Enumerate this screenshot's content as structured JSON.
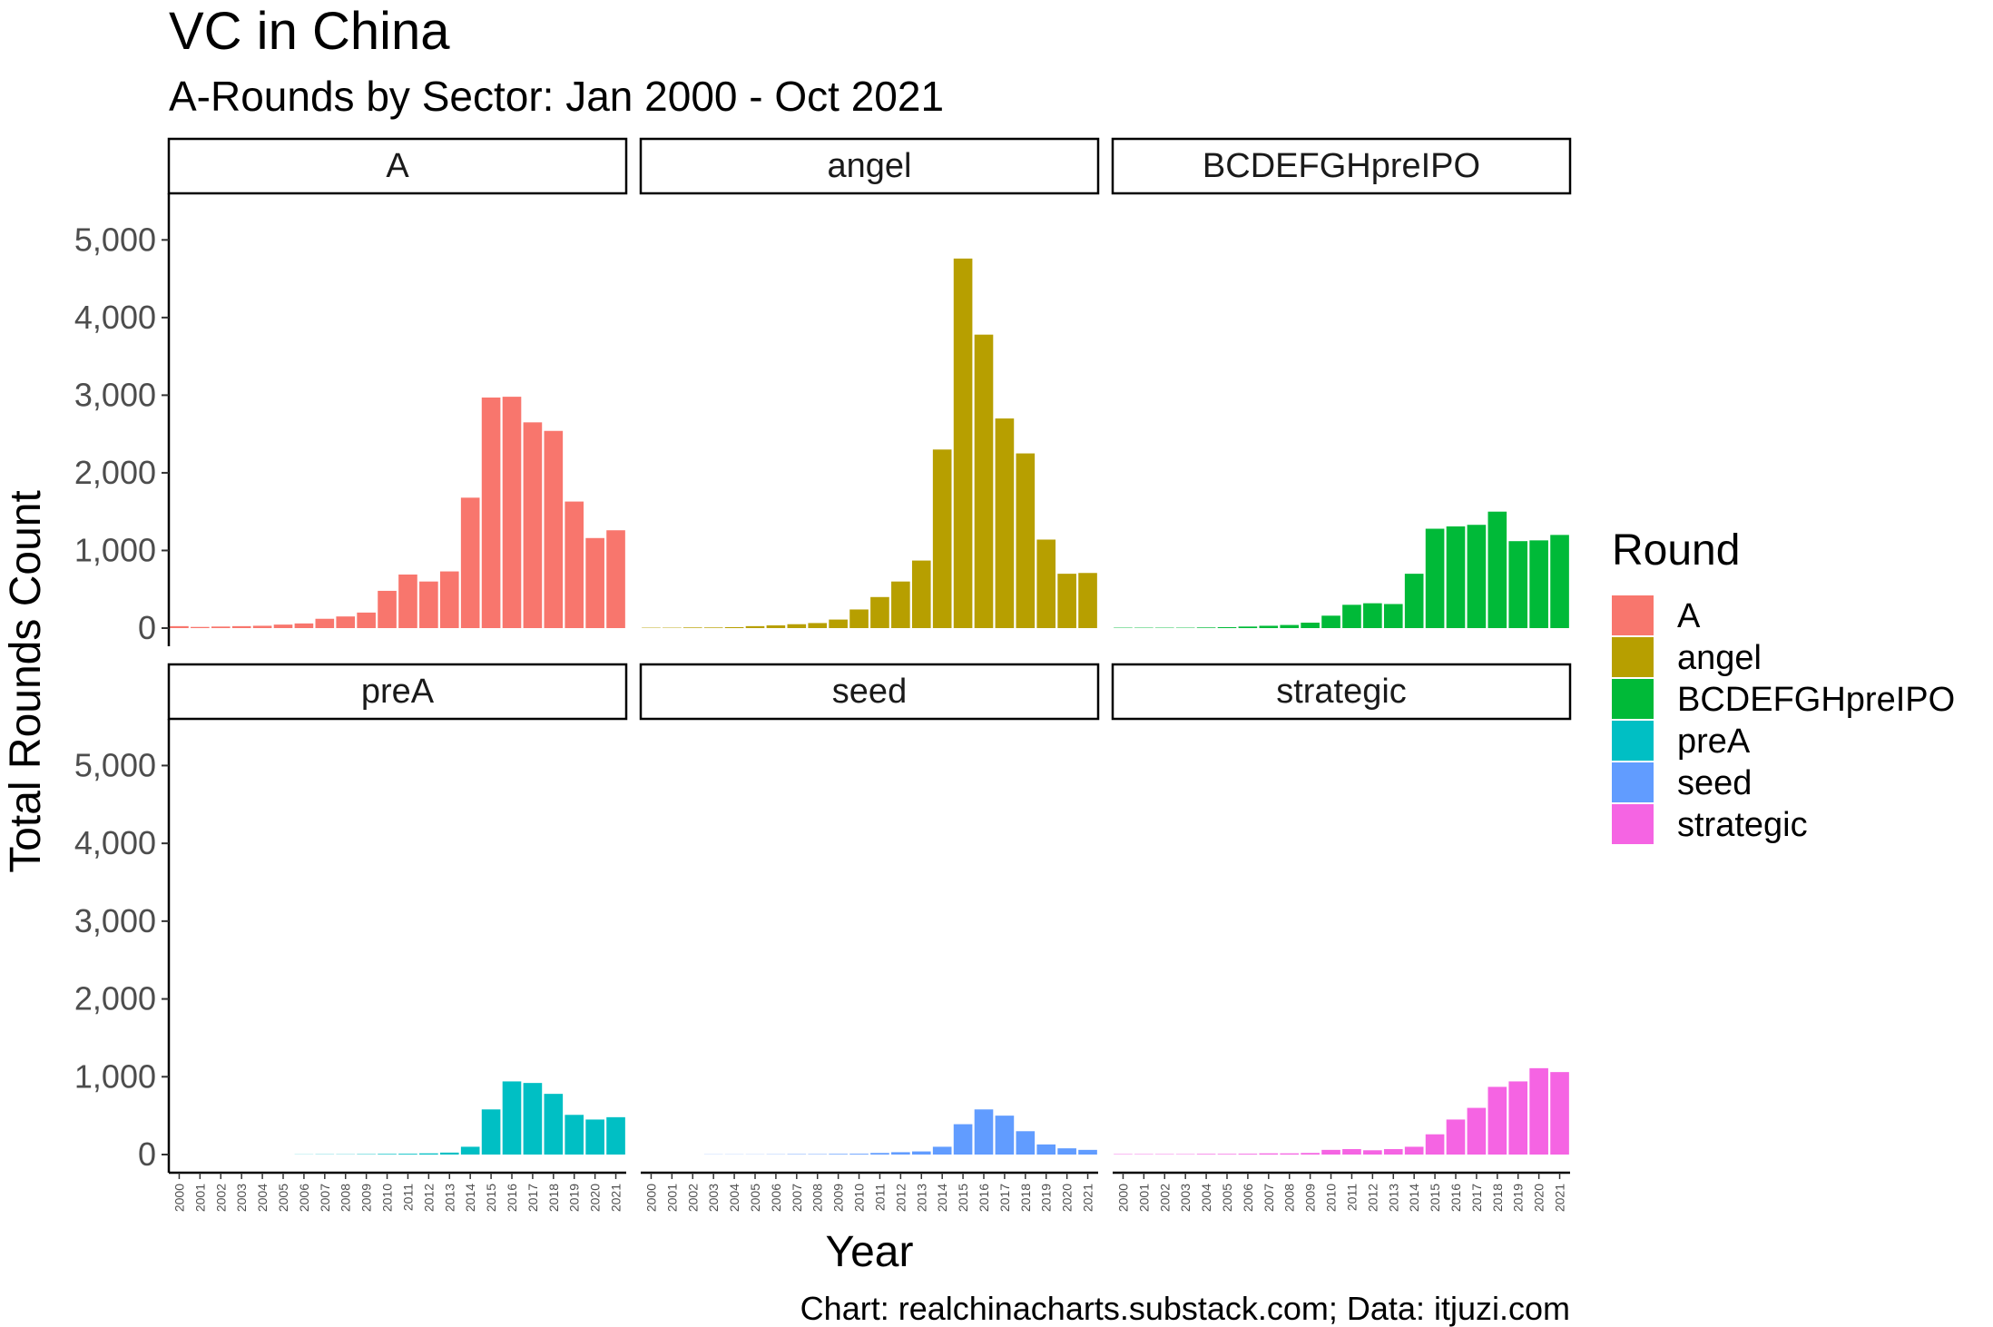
{
  "title": "VC in China",
  "subtitle": "A-Rounds by Sector: Jan 2000 - Oct 2021",
  "caption": "Chart: realchinacharts.substack.com; Data: itjuzi.com",
  "legend_title": "Round",
  "chart_data": {
    "type": "bar",
    "layout": "facet-grid-2x3",
    "xlabel": "Year",
    "ylabel": "Total Rounds Count",
    "ylim": [
      0,
      5600
    ],
    "yticks": [
      0,
      1000,
      2000,
      3000,
      4000,
      5000
    ],
    "ytick_labels": [
      "0",
      "1,000",
      "2,000",
      "3,000",
      "4,000",
      "5,000"
    ],
    "grid": false,
    "legend_position": "right",
    "categories": [
      "2000",
      "2001",
      "2002",
      "2003",
      "2004",
      "2005",
      "2006",
      "2007",
      "2008",
      "2009",
      "2010",
      "2011",
      "2012",
      "2013",
      "2014",
      "2015",
      "2016",
      "2017",
      "2018",
      "2019",
      "2020",
      "2021"
    ],
    "series": [
      {
        "name": "A",
        "color": "#F8766D",
        "values": [
          25,
          15,
          20,
          25,
          30,
          45,
          60,
          120,
          150,
          200,
          480,
          690,
          600,
          730,
          1680,
          2970,
          2980,
          2650,
          2540,
          1630,
          1160,
          1260
        ]
      },
      {
        "name": "angel",
        "color": "#B79F00",
        "values": [
          5,
          5,
          8,
          8,
          12,
          25,
          35,
          50,
          65,
          110,
          240,
          400,
          600,
          870,
          2300,
          4760,
          3780,
          2700,
          2250,
          1140,
          700,
          710
        ]
      },
      {
        "name": "BCDEFGHpreIPO",
        "color": "#00BA38",
        "values": [
          5,
          5,
          5,
          5,
          8,
          12,
          20,
          30,
          40,
          70,
          160,
          300,
          320,
          310,
          700,
          1280,
          1310,
          1330,
          1500,
          1120,
          1130,
          1200
        ]
      },
      {
        "name": "preA",
        "color": "#00BFC4",
        "values": [
          0,
          0,
          0,
          0,
          0,
          0,
          2,
          3,
          3,
          5,
          8,
          10,
          15,
          25,
          100,
          580,
          940,
          920,
          780,
          510,
          450,
          480
        ]
      },
      {
        "name": "seed",
        "color": "#619CFF",
        "values": [
          0,
          0,
          0,
          2,
          2,
          2,
          3,
          5,
          5,
          8,
          10,
          20,
          30,
          40,
          100,
          390,
          580,
          500,
          300,
          130,
          80,
          60
        ]
      },
      {
        "name": "strategic",
        "color": "#F564E3",
        "values": [
          5,
          5,
          5,
          5,
          8,
          8,
          10,
          15,
          15,
          20,
          60,
          70,
          55,
          70,
          100,
          260,
          450,
          600,
          870,
          940,
          1110,
          1060
        ]
      }
    ]
  }
}
